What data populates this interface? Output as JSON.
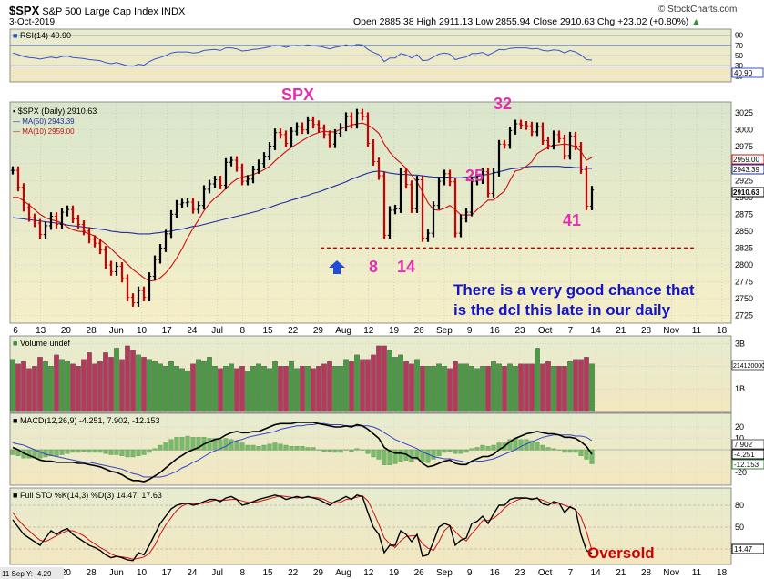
{
  "header": {
    "symbol": "$SPX",
    "name": "S&P 500 Large Cap Index",
    "exchange": "INDX",
    "brand": "© StockCharts.com",
    "date": "3-Oct-2019",
    "open_label": "Open",
    "open": "2885.38",
    "high_label": "High",
    "high": "2911.13",
    "low_label": "Low",
    "low": "2855.94",
    "close_label": "Close",
    "close": "2910.63",
    "chg_label": "Chg",
    "chg": "+23.02 (+0.80%)",
    "chg_arrow": "▲"
  },
  "rsi": {
    "legend": "RSI(14) 40.90",
    "ticks": [
      "90",
      "70",
      "50",
      "30",
      "10"
    ],
    "value_badge": "40.90",
    "color": "#3355cc"
  },
  "price": {
    "legend_title": "$SPX (Daily) 2910.63",
    "legend_ma50": "MA(50) 2943.39",
    "legend_ma10": "MA(10) 2959.00",
    "y_ticks": [
      "3025",
      "3000",
      "2975",
      "2950",
      "2925",
      "2900",
      "2875",
      "2850",
      "2825",
      "2800",
      "2775",
      "2750",
      "2725"
    ],
    "badges": {
      "ma10": "2959.00",
      "ma50": "2943.39",
      "close": "2910.63"
    },
    "annotations": {
      "spx": "SPX",
      "n32": "32",
      "n25": "25",
      "n8": "8",
      "n14": "14",
      "n41": "41",
      "note_line1": "There is a very good chance that",
      "note_line2": "is  the dcl this late in our daily"
    },
    "x_ticks": [
      "6",
      "13",
      "20",
      "28",
      "Jun",
      "10",
      "17",
      "24",
      "Jul",
      "8",
      "15",
      "22",
      "29",
      "Aug",
      "12",
      "19",
      "26",
      "Sep",
      "9",
      "16",
      "23",
      "Oct",
      "7",
      "14",
      "21",
      "28",
      "Nov",
      "11",
      "18"
    ],
    "colors": {
      "up": "#000000",
      "down": "#cc0000",
      "ma50": "#1f2f9f",
      "ma10": "#cc1111",
      "annotation": "#e030b0",
      "note": "#1515c8",
      "support": "#cc0000",
      "marker": "#1f4fd6"
    }
  },
  "volume": {
    "legend": "Volume undef",
    "ticks": [
      "3B",
      "2B",
      "1B"
    ],
    "value_badge": "2141200000"
  },
  "macd": {
    "legend": "MACD(12,26,9) -4.251, 7.902, -12.153",
    "ticks": [
      "20",
      "10",
      "-20"
    ],
    "badges": [
      "7.902",
      "-4.251",
      "-12.153"
    ]
  },
  "sto": {
    "legend": "Full STO %K(14,3) %D(3) 14.47, 17.63",
    "ticks": [
      "80",
      "50",
      "20"
    ],
    "value_badge": "14.47",
    "oversold": "Oversold"
  },
  "footer": {
    "left": "11 Sep Y: -4.29",
    "x_ticks": [
      "6",
      "13",
      "20",
      "28",
      "Jun",
      "10",
      "17",
      "24",
      "Jul",
      "8",
      "15",
      "22",
      "29",
      "Aug",
      "12",
      "19",
      "26",
      "Sep",
      "9",
      "16",
      "23",
      "Oct",
      "7",
      "14",
      "21",
      "28",
      "Nov",
      "11",
      "18"
    ]
  },
  "chart_data": {
    "type": "candlestick",
    "series": [
      {
        "name": "$SPX (Daily)",
        "values": [
          2940,
          2915,
          2885,
          2870,
          2862,
          2845,
          2858,
          2872,
          2860,
          2878,
          2882,
          2868,
          2860,
          2850,
          2838,
          2832,
          2822,
          2800,
          2790,
          2798,
          2780,
          2752,
          2744,
          2762,
          2752,
          2783,
          2808,
          2825,
          2846,
          2875,
          2890,
          2892,
          2893,
          2882,
          2888,
          2912,
          2920,
          2926,
          2918,
          2952,
          2955,
          2944,
          2924,
          2927,
          2941,
          2950,
          2961,
          2976,
          2996,
          2993,
          2980,
          2998,
          3005,
          3000,
          3014,
          3008,
          3002,
          2993,
          2979,
          2995,
          3004,
          3020,
          3008,
          3025,
          3020,
          2980,
          2953,
          2932,
          2844,
          2881,
          2883,
          2938,
          2919,
          2883,
          2926,
          2840,
          2847,
          2888,
          2924,
          2935,
          2923,
          2847,
          2869,
          2878,
          2924,
          2926,
          2938,
          2906,
          2937,
          2979,
          2978,
          2999,
          3009,
          3007,
          3006,
          2997,
          3005,
          2984,
          2977,
          2993,
          2987,
          2962,
          2991,
          2976,
          2941,
          2887,
          2911
        ]
      },
      {
        "name": "MA(50)",
        "values": [
          2870,
          2869,
          2868,
          2867,
          2866,
          2865,
          2864,
          2863,
          2862,
          2861,
          2859,
          2858,
          2857,
          2856,
          2855,
          2854,
          2853,
          2852,
          2850,
          2849,
          2848,
          2848,
          2847,
          2846,
          2846,
          2846,
          2847,
          2848,
          2849,
          2850,
          2852,
          2853,
          2855,
          2857,
          2858,
          2860,
          2862,
          2864,
          2866,
          2868,
          2870,
          2872,
          2874,
          2876,
          2878,
          2880,
          2883,
          2885,
          2888,
          2891,
          2893,
          2896,
          2898,
          2901,
          2903,
          2906,
          2908,
          2911,
          2914,
          2917,
          2920,
          2923,
          2927,
          2930,
          2933,
          2936,
          2938,
          2939,
          2938,
          2936,
          2935,
          2934,
          2934,
          2933,
          2933,
          2932,
          2931,
          2930,
          2930,
          2930,
          2930,
          2929,
          2929,
          2930,
          2930,
          2931,
          2933,
          2934,
          2936,
          2938,
          2940,
          2942,
          2943,
          2944,
          2945,
          2946,
          2946,
          2946,
          2946,
          2946,
          2946,
          2945,
          2945,
          2944,
          2944,
          2943,
          2943
        ]
      },
      {
        "name": "MA(10)",
        "values": [
          2900,
          2900,
          2895,
          2889,
          2882,
          2875,
          2870,
          2867,
          2865,
          2862,
          2856,
          2852,
          2850,
          2849,
          2846,
          2843,
          2837,
          2831,
          2824,
          2816,
          2809,
          2801,
          2793,
          2787,
          2781,
          2776,
          2777,
          2781,
          2788,
          2798,
          2810,
          2824,
          2840,
          2854,
          2867,
          2880,
          2891,
          2899,
          2905,
          2913,
          2921,
          2927,
          2930,
          2932,
          2934,
          2937,
          2941,
          2946,
          2954,
          2961,
          2968,
          2974,
          2979,
          2984,
          2989,
          2993,
          2996,
          2998,
          2997,
          2997,
          3001,
          3005,
          3007,
          3009,
          3010,
          3007,
          3002,
          2995,
          2979,
          2967,
          2958,
          2951,
          2943,
          2933,
          2923,
          2908,
          2892,
          2882,
          2881,
          2884,
          2888,
          2882,
          2874,
          2874,
          2874,
          2882,
          2889,
          2896,
          2896,
          2903,
          2909,
          2925,
          2939,
          2941,
          2946,
          2953,
          2965,
          2970,
          2974,
          2977,
          2978,
          2979,
          2978,
          2975,
          2968,
          2955,
          2959
        ]
      },
      {
        "name": "RSI(14)",
        "values": [
          55,
          52,
          48,
          46,
          45,
          43,
          45,
          47,
          45,
          48,
          49,
          46,
          45,
          44,
          42,
          41,
          40,
          36,
          34,
          36,
          33,
          30,
          29,
          33,
          31,
          38,
          43,
          46,
          50,
          55,
          57,
          57,
          57,
          55,
          56,
          60,
          61,
          62,
          60,
          65,
          65,
          63,
          59,
          60,
          62,
          63,
          65,
          67,
          70,
          69,
          66,
          69,
          70,
          69,
          71,
          69,
          68,
          66,
          63,
          66,
          68,
          71,
          68,
          72,
          71,
          62,
          56,
          52,
          38,
          45,
          45,
          54,
          51,
          45,
          52,
          40,
          41,
          47,
          53,
          55,
          53,
          42,
          45,
          47,
          54,
          54,
          56,
          51,
          56,
          62,
          61,
          64,
          65,
          65,
          65,
          63,
          64,
          60,
          59,
          61,
          60,
          55,
          60,
          57,
          51,
          42,
          41
        ]
      },
      {
        "name": "Volume",
        "values": [
          2.3,
          2.1,
          2.2,
          1.9,
          2.0,
          2.4,
          2.2,
          2.0,
          2.5,
          2.3,
          2.2,
          2.1,
          2.0,
          2.3,
          2.6,
          2.1,
          2.2,
          2.6,
          2.4,
          2.8,
          2.3,
          2.9,
          2.7,
          2.5,
          2.4,
          2.3,
          2.2,
          2.1,
          2.0,
          2.2,
          2.0,
          1.9,
          1.8,
          2.1,
          2.3,
          2.2,
          2.4,
          2.0,
          1.9,
          2.0,
          2.1,
          1.9,
          2.0,
          1.8,
          2.0,
          2.1,
          2.0,
          1.9,
          2.2,
          2.0,
          2.0,
          2.2,
          1.9,
          2.0,
          2.0,
          1.9,
          2.0,
          2.1,
          2.2,
          2.0,
          2.0,
          2.3,
          2.2,
          2.5,
          2.3,
          2.3,
          2.5,
          2.9,
          2.9,
          2.7,
          2.4,
          2.5,
          2.2,
          2.1,
          2.3,
          2.0,
          2.0,
          2.0,
          2.1,
          2.0,
          1.9,
          2.2,
          2.1,
          2.1,
          2.0,
          1.9,
          2.0,
          2.0,
          2.2,
          2.1,
          2.0,
          2.1,
          2.0,
          2.1,
          2.1,
          2.1,
          2.8,
          2.1,
          2.2,
          2.0,
          2.0,
          2.0,
          2.2,
          2.3,
          2.3,
          2.4,
          2.1
        ]
      },
      {
        "name": "MACD",
        "values": [
          2,
          0,
          -3,
          -5,
          -7,
          -9,
          -10,
          -10,
          -11,
          -11,
          -11,
          -11,
          -12,
          -12,
          -13,
          -14,
          -15,
          -17,
          -19,
          -20,
          -22,
          -25,
          -27,
          -27,
          -28,
          -26,
          -23,
          -20,
          -16,
          -12,
          -8,
          -5,
          -2,
          0,
          2,
          5,
          7,
          9,
          10,
          13,
          15,
          16,
          15,
          15,
          16,
          16,
          18,
          20,
          22,
          23,
          23,
          23,
          24,
          24,
          24,
          24,
          23,
          22,
          21,
          20,
          20,
          21,
          20,
          22,
          21,
          18,
          14,
          10,
          2,
          -1,
          -3,
          -3,
          -4,
          -7,
          -7,
          -12,
          -15,
          -14,
          -12,
          -10,
          -9,
          -12,
          -13,
          -13,
          -10,
          -8,
          -6,
          -6,
          -4,
          0,
          3,
          7,
          10,
          12,
          14,
          15,
          16,
          15,
          14,
          14,
          13,
          11,
          11,
          10,
          7,
          3,
          -4
        ]
      },
      {
        "name": "Signal",
        "values": [
          6,
          5,
          4,
          2,
          0,
          -2,
          -4,
          -5,
          -6,
          -7,
          -8,
          -9,
          -10,
          -11,
          -11,
          -12,
          -13,
          -14,
          -15,
          -16,
          -17,
          -19,
          -21,
          -22,
          -24,
          -24,
          -24,
          -24,
          -23,
          -21,
          -19,
          -16,
          -14,
          -11,
          -9,
          -6,
          -3,
          -1,
          1,
          3,
          6,
          8,
          9,
          11,
          12,
          13,
          14,
          15,
          16,
          18,
          19,
          20,
          21,
          21,
          22,
          22,
          23,
          23,
          22,
          22,
          22,
          21,
          21,
          21,
          21,
          21,
          20,
          18,
          15,
          12,
          9,
          7,
          5,
          3,
          1,
          -2,
          -4,
          -6,
          -7,
          -8,
          -8,
          -9,
          -10,
          -11,
          -11,
          -10,
          -10,
          -9,
          -8,
          -6,
          -4,
          -2,
          0,
          3,
          5,
          7,
          9,
          11,
          12,
          13,
          13,
          13,
          13,
          12,
          12,
          11,
          8
        ]
      },
      {
        "name": "%K",
        "values": [
          60,
          50,
          40,
          35,
          30,
          25,
          35,
          45,
          40,
          45,
          48,
          40,
          35,
          30,
          25,
          22,
          18,
          12,
          8,
          10,
          8,
          5,
          4,
          15,
          12,
          25,
          40,
          55,
          65,
          75,
          80,
          82,
          83,
          80,
          82,
          85,
          88,
          88,
          85,
          90,
          92,
          88,
          80,
          82,
          85,
          88,
          90,
          92,
          94,
          92,
          88,
          90,
          92,
          90,
          92,
          90,
          88,
          84,
          80,
          85,
          88,
          92,
          88,
          94,
          92,
          70,
          50,
          40,
          15,
          25,
          25,
          45,
          40,
          30,
          40,
          10,
          12,
          30,
          50,
          55,
          52,
          25,
          32,
          35,
          55,
          58,
          65,
          55,
          68,
          80,
          80,
          88,
          90,
          90,
          90,
          88,
          90,
          82,
          80,
          85,
          83,
          70,
          78,
          74,
          40,
          18,
          14
        ]
      },
      {
        "name": "%D",
        "values": [
          70,
          60,
          52,
          45,
          38,
          32,
          30,
          34,
          38,
          42,
          45,
          45,
          42,
          38,
          32,
          27,
          22,
          18,
          13,
          10,
          9,
          8,
          6,
          7,
          9,
          14,
          25,
          40,
          53,
          63,
          73,
          79,
          82,
          82,
          82,
          83,
          85,
          87,
          87,
          87,
          88,
          88,
          86,
          84,
          84,
          85,
          87,
          89,
          91,
          93,
          92,
          91,
          90,
          91,
          91,
          91,
          90,
          88,
          84,
          83,
          84,
          88,
          89,
          91,
          93,
          86,
          71,
          54,
          35,
          27,
          22,
          31,
          37,
          38,
          38,
          27,
          21,
          18,
          30,
          45,
          52,
          44,
          36,
          31,
          41,
          49,
          59,
          59,
          62,
          68,
          76,
          82,
          86,
          89,
          90,
          89,
          89,
          87,
          84,
          82,
          83,
          80,
          77,
          74,
          64,
          44,
          18
        ]
      }
    ],
    "y_range": [
      2715,
      3040
    ],
    "support_level": 2825,
    "x_start": "May 2019",
    "x_end": "Nov 2019"
  }
}
